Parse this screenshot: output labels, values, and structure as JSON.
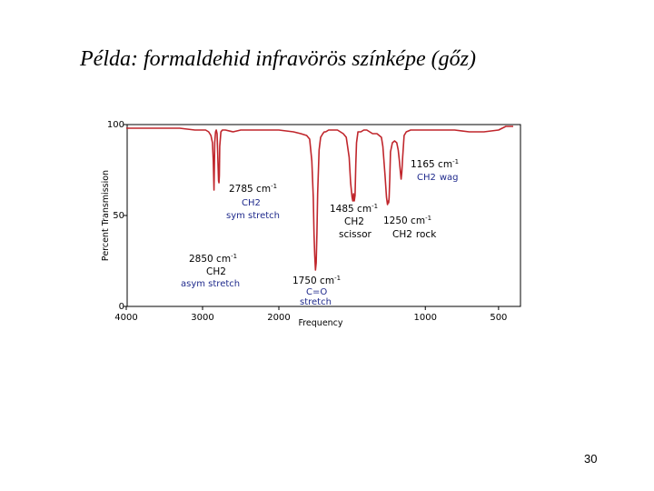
{
  "slide": {
    "title": "Példa: formaldehid infravörös színképe (gőz)",
    "page_number": "30"
  },
  "chart_data": {
    "type": "line",
    "title": "",
    "xlabel": "Frequency",
    "ylabel": "Percent Transmission",
    "xlim": [
      4000,
      400
    ],
    "x_reversed": true,
    "ylim": [
      0,
      100
    ],
    "xticks": [
      {
        "value": 4000,
        "label": "4000"
      },
      {
        "value": 3000,
        "label": "3000"
      },
      {
        "value": 2000,
        "label": "2000"
      },
      {
        "value": 1000,
        "label": "1000"
      },
      {
        "value": 500,
        "label": "500"
      }
    ],
    "yticks": [
      {
        "value": 100,
        "label": "100"
      },
      {
        "value": 50,
        "label": "50"
      },
      {
        "value": 0,
        "label": "0"
      }
    ],
    "line_color": "#c0262c",
    "series": [
      {
        "name": "",
        "x": [
          4000,
          3800,
          3500,
          3300,
          3100,
          3000,
          2960,
          2920,
          2890,
          2870,
          2860,
          2850,
          2840,
          2830,
          2820,
          2810,
          2800,
          2790,
          2785,
          2780,
          2775,
          2760,
          2740,
          2700,
          2600,
          2500,
          2300,
          2100,
          2000,
          1900,
          1850,
          1810,
          1790,
          1775,
          1765,
          1760,
          1755,
          1750,
          1745,
          1740,
          1735,
          1725,
          1715,
          1700,
          1690,
          1680,
          1660,
          1640,
          1620,
          1600,
          1580,
          1560,
          1540,
          1520,
          1510,
          1500,
          1495,
          1490,
          1485,
          1480,
          1475,
          1470,
          1460,
          1440,
          1420,
          1400,
          1380,
          1360,
          1330,
          1300,
          1290,
          1275,
          1265,
          1258,
          1252,
          1250,
          1247,
          1243,
          1238,
          1225,
          1210,
          1195,
          1185,
          1177,
          1170,
          1165,
          1160,
          1155,
          1145,
          1130,
          1100,
          1050,
          1000,
          900,
          800,
          700,
          600,
          500,
          450,
          400
        ],
        "y": [
          98,
          98,
          98,
          98,
          97,
          97,
          97,
          96,
          94,
          90,
          80,
          64,
          90,
          96,
          97,
          95,
          82,
          69,
          68,
          72,
          88,
          96,
          97,
          97,
          96,
          97,
          97,
          97,
          97,
          96,
          95,
          94,
          92,
          80,
          60,
          40,
          28,
          20,
          24,
          40,
          62,
          86,
          93,
          95,
          96,
          96,
          97,
          97,
          97,
          97,
          96,
          95,
          93,
          82,
          68,
          60,
          58,
          62,
          58,
          61,
          78,
          90,
          96,
          96,
          97,
          97,
          96,
          95,
          95,
          93,
          88,
          72,
          60,
          56,
          58,
          57,
          60,
          70,
          85,
          90,
          91,
          90,
          86,
          80,
          74,
          70,
          74,
          82,
          94,
          96,
          97,
          97,
          97,
          97,
          97,
          96,
          96,
          97,
          99,
          99
        ]
      }
    ],
    "annotations": [
      {
        "freq": "2785 cm",
        "exp": "-1",
        "group": "CH2",
        "mode": "sym stretch"
      },
      {
        "freq": "2850 cm",
        "exp": "-1",
        "group": "CH2",
        "mode": "asym stretch"
      },
      {
        "freq": "1750 cm",
        "exp": "-1",
        "group": "C=O",
        "mode": "stretch"
      },
      {
        "freq": "1485 cm",
        "exp": "-1",
        "group": "CH2",
        "mode": "scissor"
      },
      {
        "freq": "1250 cm",
        "exp": "-1",
        "group": "CH2",
        "mode": "rock"
      },
      {
        "freq": "1165 cm",
        "exp": "-1",
        "group": "CH2",
        "mode": "wag"
      }
    ]
  }
}
